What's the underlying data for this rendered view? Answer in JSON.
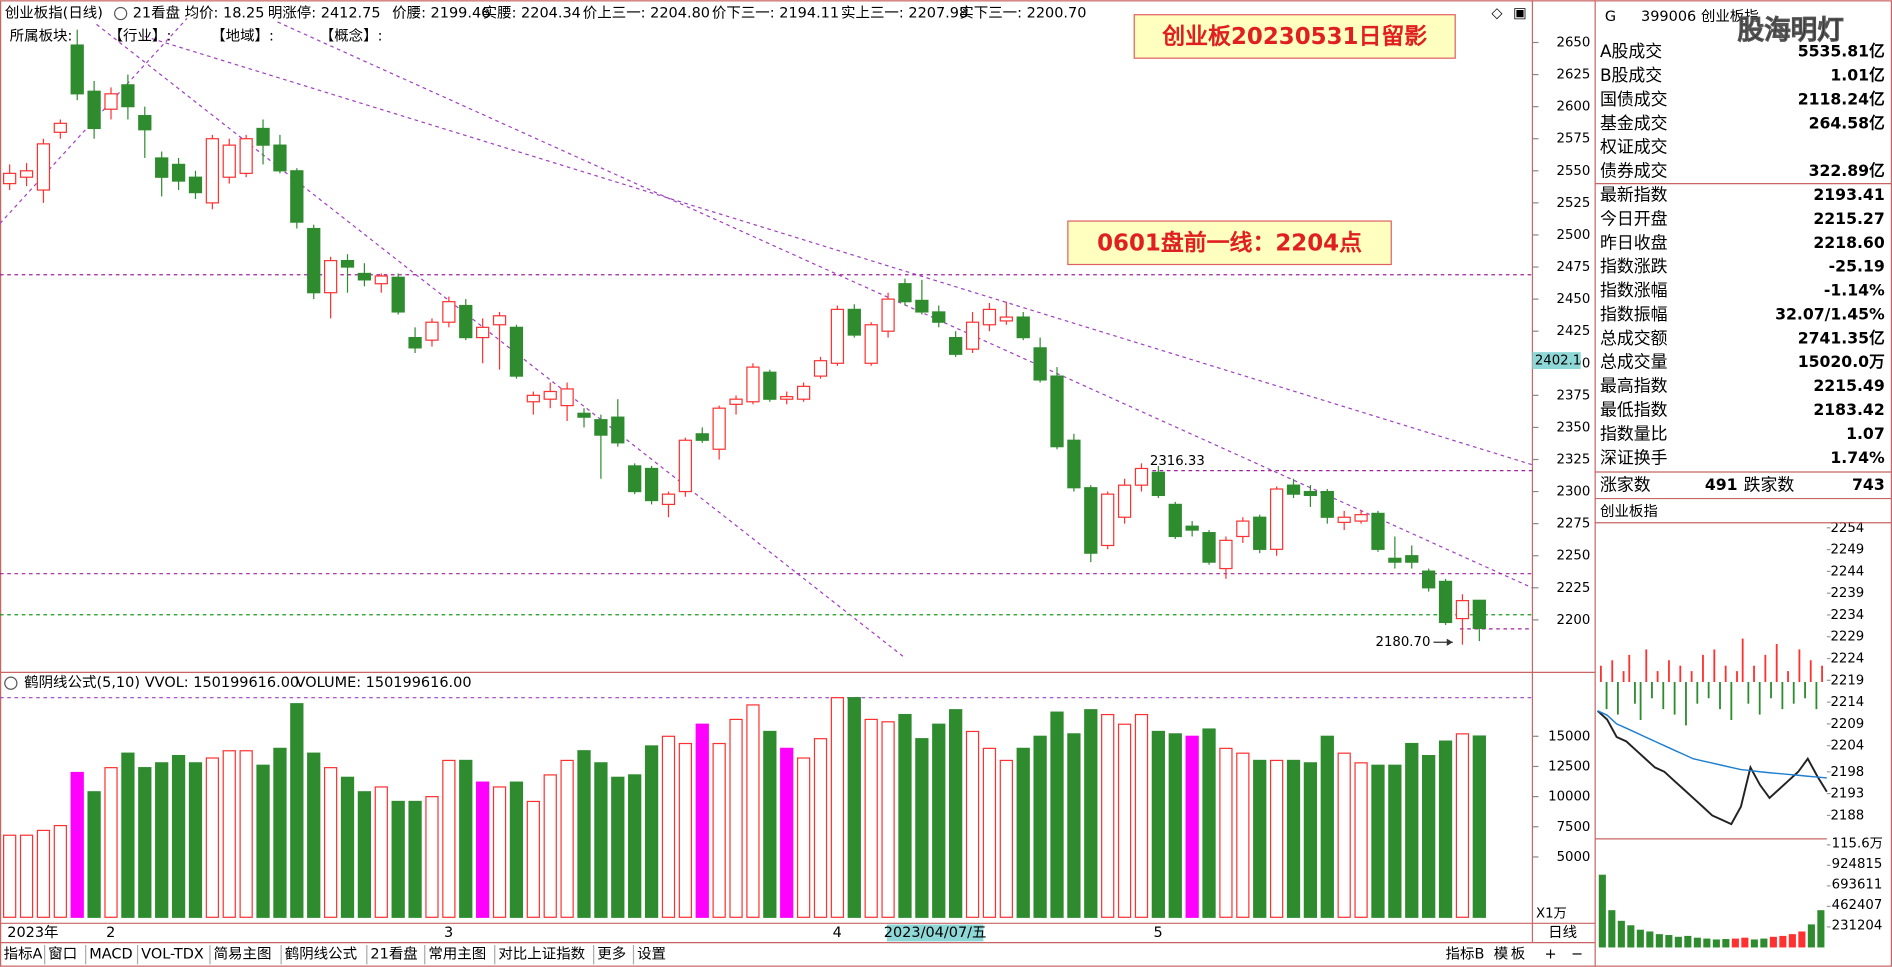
{
  "header": {
    "title": "创业板指(日线)",
    "items": [
      {
        "text": "21看盘",
        "color": "#000000"
      },
      {
        "text": "均价: 18.25",
        "color": "#000000"
      },
      {
        "text": "明涨停: 2412.75",
        "color": "#ff2020"
      },
      {
        "text": "价腰: 2199.46",
        "color": "#a020a0"
      },
      {
        "text": "实腰: 2204.34",
        "color": "#ff2020"
      },
      {
        "text": "价上三一: 2204.80",
        "color": "#1a9a1a"
      },
      {
        "text": "价下三一: 2194.11",
        "color": "#20c0c0"
      },
      {
        "text": "实上三一: 2207.98",
        "color": "#000000"
      },
      {
        "text": "实下三一: 2200.70",
        "color": "#ff2020"
      }
    ],
    "row2": [
      "所属板块:",
      "【行业】:",
      "【地域】:",
      "【概念】:"
    ]
  },
  "annotations": [
    "创业板20230531日留影",
    "0601盘前一线：2204点"
  ],
  "cursor_date": "2023/04/07/五",
  "period": "日线",
  "unit": "X1万",
  "chart_data": [
    {
      "type": "candlestick",
      "categories": [
        "2023年",
        null,
        null,
        null,
        null,
        null,
        "2",
        null,
        null,
        null,
        null,
        null,
        null,
        null,
        null,
        null,
        null,
        null,
        null,
        null,
        null,
        null,
        null,
        null,
        null,
        null,
        "3",
        null,
        null,
        null,
        null,
        null,
        null,
        null,
        null,
        null,
        null,
        null,
        null,
        null,
        null,
        null,
        null,
        null,
        null,
        null,
        null,
        null,
        null,
        "4",
        null,
        null,
        null,
        null,
        null,
        null,
        null,
        null,
        null,
        null,
        null,
        null,
        null,
        null,
        null,
        null,
        null,
        null,
        "5",
        null,
        null,
        null,
        null,
        null,
        null,
        null,
        null,
        null,
        null,
        null,
        null,
        null,
        null,
        null,
        null,
        null,
        null,
        null
      ],
      "open": [
        2540,
        2545,
        2535,
        2580,
        2648,
        2612,
        2598,
        2617,
        2593,
        2560,
        2555,
        2545,
        2525,
        2545,
        2548,
        2583,
        2570,
        2550,
        2505,
        2455,
        2480,
        2470,
        2462,
        2467,
        2420,
        2418,
        2432,
        2445,
        2420,
        2430,
        2428,
        2370,
        2372,
        2367,
        2361,
        2356,
        2358,
        2320,
        2318,
        2290,
        2300,
        2345,
        2333,
        2368,
        2370,
        2393,
        2372,
        2372,
        2390,
        2400,
        2442,
        2400,
        2425,
        2462,
        2449,
        2440,
        2420,
        2411,
        2430,
        2433,
        2436,
        2412,
        2390,
        2340,
        2303,
        2258,
        2280,
        2305,
        2315,
        2290,
        2273,
        2268,
        2240,
        2265,
        2280,
        2255,
        2305,
        2300,
        2300,
        2276,
        2277,
        2283,
        2248,
        2250,
        2238,
        2230,
        2201,
        2215.27
      ],
      "high": [
        2555,
        2556,
        2575,
        2590,
        2660,
        2620,
        2615,
        2625,
        2600,
        2565,
        2560,
        2550,
        2578,
        2575,
        2578,
        2590,
        2578,
        2552,
        2508,
        2483,
        2485,
        2478,
        2470,
        2470,
        2428,
        2435,
        2452,
        2450,
        2435,
        2440,
        2430,
        2378,
        2385,
        2385,
        2365,
        2360,
        2372,
        2322,
        2320,
        2300,
        2342,
        2350,
        2367,
        2375,
        2400,
        2395,
        2378,
        2385,
        2405,
        2445,
        2446,
        2432,
        2455,
        2466,
        2465,
        2445,
        2425,
        2440,
        2447,
        2448,
        2440,
        2420,
        2397,
        2345,
        2305,
        2300,
        2310,
        2322,
        2320,
        2292,
        2277,
        2270,
        2265,
        2280,
        2282,
        2304,
        2310,
        2305,
        2302,
        2285,
        2285,
        2285,
        2265,
        2258,
        2240,
        2232,
        2220,
        2215.49
      ],
      "low": [
        2535,
        2538,
        2525,
        2575,
        2605,
        2575,
        2590,
        2590,
        2560,
        2530,
        2535,
        2528,
        2520,
        2540,
        2545,
        2555,
        2548,
        2505,
        2450,
        2435,
        2455,
        2460,
        2455,
        2438,
        2408,
        2413,
        2428,
        2418,
        2400,
        2395,
        2388,
        2360,
        2365,
        2355,
        2350,
        2310,
        2335,
        2298,
        2290,
        2280,
        2296,
        2338,
        2325,
        2360,
        2368,
        2370,
        2368,
        2370,
        2388,
        2398,
        2420,
        2398,
        2420,
        2445,
        2438,
        2428,
        2405,
        2408,
        2425,
        2430,
        2418,
        2385,
        2333,
        2300,
        2245,
        2255,
        2275,
        2300,
        2295,
        2263,
        2265,
        2243,
        2232,
        2260,
        2252,
        2250,
        2295,
        2288,
        2275,
        2270,
        2275,
        2253,
        2240,
        2240,
        2222,
        2196,
        2180.7,
        2183.42
      ],
      "close": [
        2548,
        2550,
        2571,
        2587,
        2610,
        2583,
        2610,
        2600,
        2582,
        2545,
        2542,
        2533,
        2575,
        2570,
        2575,
        2570,
        2550,
        2510,
        2455,
        2480,
        2475,
        2465,
        2468,
        2440,
        2412,
        2432,
        2448,
        2420,
        2428,
        2437,
        2390,
        2375,
        2378,
        2380,
        2358,
        2344,
        2338,
        2300,
        2293,
        2298,
        2340,
        2340,
        2365,
        2372,
        2397,
        2372,
        2374,
        2382,
        2402,
        2442,
        2422,
        2430,
        2450,
        2448,
        2440,
        2432,
        2407,
        2432,
        2442,
        2436,
        2420,
        2387,
        2335,
        2303,
        2252,
        2298,
        2305,
        2318,
        2297,
        2265,
        2270,
        2245,
        2262,
        2277,
        2255,
        2302,
        2298,
        2297,
        2280,
        2280,
        2282,
        2255,
        2245,
        2245,
        2225,
        2198,
        2215,
        2193.41
      ],
      "up_color": "#ff3030",
      "down_color": "#2e8b2e",
      "ylim": [
        2161,
        2666
      ],
      "yticks": [
        2200,
        2225,
        2250,
        2275,
        2300,
        2325,
        2350,
        2375,
        2400,
        2425,
        2450,
        2475,
        2500,
        2525,
        2550,
        2575,
        2600,
        2625,
        2650
      ],
      "levels": [
        {
          "value": 2469,
          "color": "#a020a0"
        },
        {
          "value": 2316.33,
          "color": "#a020a0"
        },
        {
          "value": 2236,
          "color": "#a020a0"
        },
        {
          "value": 2204,
          "color": "#1a9a1a"
        },
        {
          "value": 2193,
          "color": "#a020a0"
        }
      ],
      "marks": [
        2316.33,
        {
          "value": 2180.7,
          "label": "2180.70"
        }
      ],
      "cursor_value": 2402.1
    },
    {
      "type": "bar",
      "header": [
        {
          "text": "鹤阴线公式(5,10)",
          "color": "#000000"
        },
        {
          "text": "VVOL: 150199616.00",
          "color": "#000000"
        },
        {
          "text": "VOLUME: 150199616.00",
          "color": "#1e7fd0"
        }
      ],
      "values": [
        6800,
        6800,
        7200,
        7600,
        12000,
        10400,
        12400,
        13600,
        12400,
        12800,
        13400,
        12800,
        13200,
        13800,
        13800,
        12600,
        14000,
        17700,
        13600,
        12400,
        11600,
        10400,
        10800,
        9600,
        9600,
        10000,
        13000,
        13000,
        11200,
        10800,
        11200,
        9600,
        11800,
        13000,
        13800,
        12800,
        11600,
        11800,
        14200,
        15000,
        14400,
        16000,
        14400,
        16400,
        17600,
        15400,
        14000,
        13200,
        14800,
        18200,
        18200,
        16400,
        16200,
        16800,
        14800,
        16000,
        17200,
        15400,
        14000,
        13000,
        14000,
        15000,
        17000,
        15200,
        17200,
        16800,
        16000,
        16800,
        15400,
        15200,
        15000,
        15600,
        14000,
        13600,
        13000,
        13000,
        13000,
        12800,
        15000,
        13600,
        12800,
        12600,
        12600,
        14400,
        13400,
        14600,
        15200,
        15020
      ],
      "highlight": [
        4,
        28,
        41,
        46,
        70
      ],
      "highlight_color": "#ff00ff",
      "ylim": [
        0,
        18500
      ],
      "yticks": [
        5000,
        7500,
        10000,
        12500,
        15000
      ]
    },
    {
      "type": "line",
      "series": [
        {
          "color": "#222222",
          "values": [
            2212,
            2210,
            2206,
            2205,
            2203,
            2201,
            2199,
            2198,
            2196,
            2194,
            2192,
            2190,
            2188,
            2187,
            2186,
            2190,
            2199,
            2195,
            2192,
            2194,
            2196,
            2198,
            2201,
            2197,
            2193.41
          ]
        },
        {
          "color": "#1e7fd0",
          "values": [
            2212,
            2211,
            2209,
            2208,
            2207,
            2206,
            2205,
            2204,
            2203,
            2202,
            2201,
            2200.5,
            2200,
            2199.5,
            2199,
            2198.5,
            2198.3,
            2198,
            2197.8,
            2197.6,
            2197.4,
            2197.2,
            2197,
            2196.8,
            2196.6
          ]
        }
      ],
      "ylim": [
        2184,
        2256
      ],
      "yticks": [
        2254,
        2249,
        2244,
        2239,
        2234,
        2229,
        2224,
        2219,
        2214,
        2209,
        2204,
        2198,
        2193,
        2188
      ]
    },
    {
      "type": "bar",
      "values": [
        3,
        -5,
        4,
        -6,
        2,
        5,
        -4,
        -7,
        6,
        -3,
        2,
        -5,
        4,
        -6,
        3,
        -8,
        2,
        -4,
        5,
        -3,
        6,
        -5,
        3,
        -7,
        2,
        8,
        -4,
        3,
        -6,
        5,
        -3,
        7,
        -5,
        2,
        -4,
        6,
        -3,
        4,
        -5,
        3
      ],
      "up_color": "#ff3030",
      "down_color": "#2e8b2e",
      "ylim": [
        -10,
        10
      ]
    },
    {
      "type": "bar",
      "values": [
        820000,
        420000,
        300000,
        250000,
        200000,
        180000,
        150000,
        140000,
        120000,
        130000,
        110000,
        100000,
        90000,
        95000,
        100000,
        110000,
        90000,
        100000,
        120000,
        130000,
        150000,
        180000,
        260000,
        420000
      ],
      "up_color": "#ff3030",
      "down_color": "#2e8b2e",
      "ylim": [
        0,
        1156019
      ],
      "yticks": [
        231204,
        462407,
        693611,
        924815,
        {
          "value": 1156019,
          "label": "115.6万"
        }
      ]
    }
  ],
  "sidebar": {
    "code": "G",
    "name": "399006 创业板指",
    "watermark": "股海明灯",
    "rows": [
      {
        "label": "A股成交",
        "value": "5535.81亿"
      },
      {
        "label": "B股成交",
        "value": "1.01亿"
      },
      {
        "label": "国债成交",
        "value": "2118.24亿"
      },
      {
        "label": "基金成交",
        "value": "264.58亿"
      },
      {
        "label": "权证成交"
      },
      {
        "label": "债券成交",
        "value": "322.89亿"
      },
      {
        "label": "最新指数",
        "value": "2193.41",
        "color": "#1a9a1a"
      },
      {
        "label": "今日开盘",
        "value": "2215.27",
        "color": "#1a9a1a"
      },
      {
        "label": "昨日收盘",
        "value": "2218.60"
      },
      {
        "label": "指数涨跌",
        "value": "-25.19",
        "color": "#1a9a1a"
      },
      {
        "label": "指数涨幅",
        "value": "-1.14%",
        "color": "#1a9a1a"
      },
      {
        "label": "指数振幅",
        "value": "32.07/1.45%"
      },
      {
        "label": "总成交额",
        "value": "2741.35亿"
      },
      {
        "label": "总成交量",
        "value": "15020.0万"
      },
      {
        "label": "最高指数",
        "value": "2215.49",
        "color": "#1a9a1a"
      },
      {
        "label": "最低指数",
        "value": "2183.42",
        "color": "#1a9a1a"
      },
      {
        "label": "指数量比",
        "value": "1.07",
        "color": "#ff2020"
      },
      {
        "label": "深证换手",
        "value": "1.74%"
      }
    ],
    "breadth": {
      "up_label": "涨家数",
      "up": 491,
      "down_label": "跌家数",
      "down": 743
    },
    "subtitle": "创业板指"
  },
  "tabs": [
    "指标A",
    "窗口",
    "MACD",
    "VOL-TDX",
    "简易主图",
    "鹤阴线公式",
    "21看盘",
    "常用主图",
    "对比上证指数",
    "更多",
    "设置"
  ],
  "active_tab": 5,
  "tabs_right": [
    "指标B",
    "模",
    "板"
  ],
  "zoom": [
    "+",
    "−"
  ]
}
